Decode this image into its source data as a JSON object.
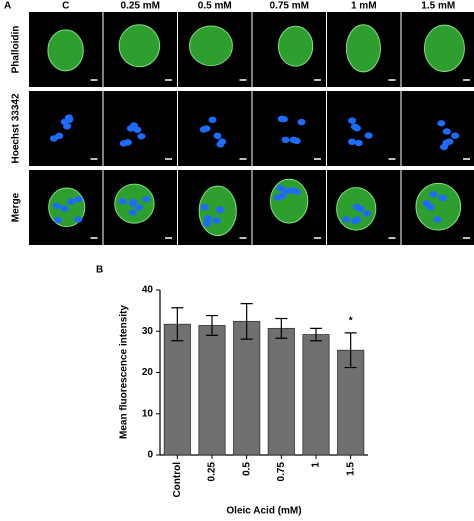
{
  "panel_a": {
    "label": "A",
    "columns": [
      "C",
      "0.25 mM",
      "0.5 mM",
      "0.75 mM",
      "1 mM",
      "1.5 mM"
    ],
    "rows": [
      "Phalloidin",
      "Hoechst 33342",
      "Merge"
    ]
  },
  "chart_data": {
    "type": "bar",
    "panel_label": "B",
    "y_label": "Mean fluorescence intensity",
    "x_label": "Oleic Acid (mM)",
    "categories": [
      "Control",
      "0.25",
      "0.5",
      "0.75",
      "1",
      "1.5"
    ],
    "values": [
      31.7,
      31.4,
      32.4,
      30.7,
      29.2,
      25.4
    ],
    "errors": [
      4.0,
      2.4,
      4.3,
      2.4,
      1.5,
      4.2
    ],
    "color": "#707070",
    "ylim": [
      0,
      40
    ],
    "yticks": [
      0,
      10,
      20,
      30,
      40
    ],
    "annotations": [
      "*"
    ]
  }
}
